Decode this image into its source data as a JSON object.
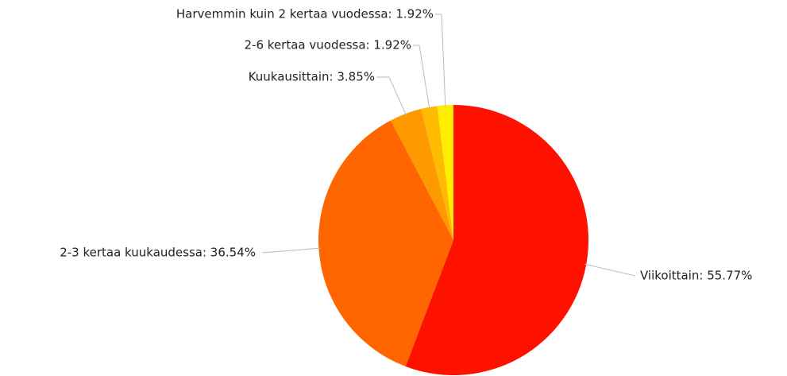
{
  "chart_data": {
    "type": "pie",
    "labels": [
      "Viikoittain: 55.77%",
      "2-3 kertaa kuukaudessa: 36.54%",
      "Kuukausittain: 3.85%",
      "2-6 kertaa vuodessa: 1.92%",
      "Harvemmin kuin 2 kertaa vuodessa: 1.92%"
    ],
    "values": [
      55.77,
      36.54,
      3.85,
      1.92,
      1.92
    ],
    "colors": [
      "#ff1100",
      "#ff6600",
      "#ff9900",
      "#ffbb00",
      "#ffee00"
    ]
  }
}
